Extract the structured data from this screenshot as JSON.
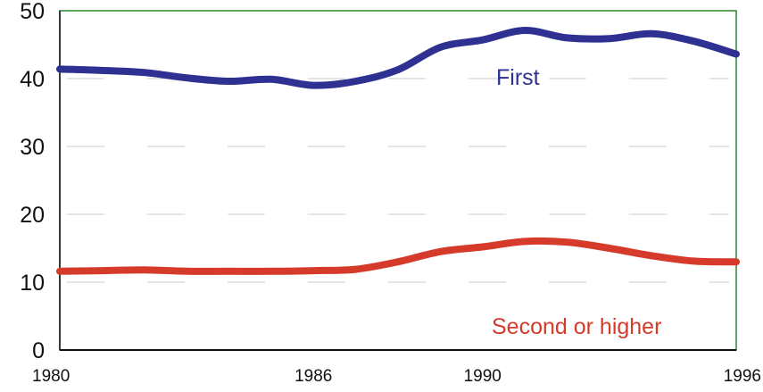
{
  "chart_data": {
    "type": "line",
    "title": "",
    "xlabel": "",
    "ylabel": "",
    "xlim": [
      1980,
      1996
    ],
    "ylim": [
      0,
      50
    ],
    "yticks": [
      0,
      10,
      20,
      30,
      40,
      50
    ],
    "xticks": [
      1980,
      1986,
      1990,
      1996
    ],
    "grid": "dashed horizontal",
    "x": [
      1980,
      1981,
      1982,
      1983,
      1984,
      1985,
      1986,
      1987,
      1988,
      1989,
      1990,
      1991,
      1992,
      1993,
      1994,
      1995,
      1996
    ],
    "series": [
      {
        "name": "First",
        "color": "#2e3192",
        "values": [
          41.4,
          41.2,
          40.9,
          40.1,
          39.6,
          39.9,
          39.0,
          39.6,
          41.3,
          44.6,
          45.7,
          47.1,
          46.0,
          45.9,
          46.6,
          45.5,
          43.6
        ]
      },
      {
        "name": "Second or higher",
        "color": "#d63a2a",
        "values": [
          11.6,
          11.7,
          11.8,
          11.6,
          11.6,
          11.6,
          11.7,
          11.9,
          13.0,
          14.5,
          15.2,
          16.0,
          15.9,
          15.0,
          13.9,
          13.1,
          13.0
        ]
      }
    ]
  }
}
